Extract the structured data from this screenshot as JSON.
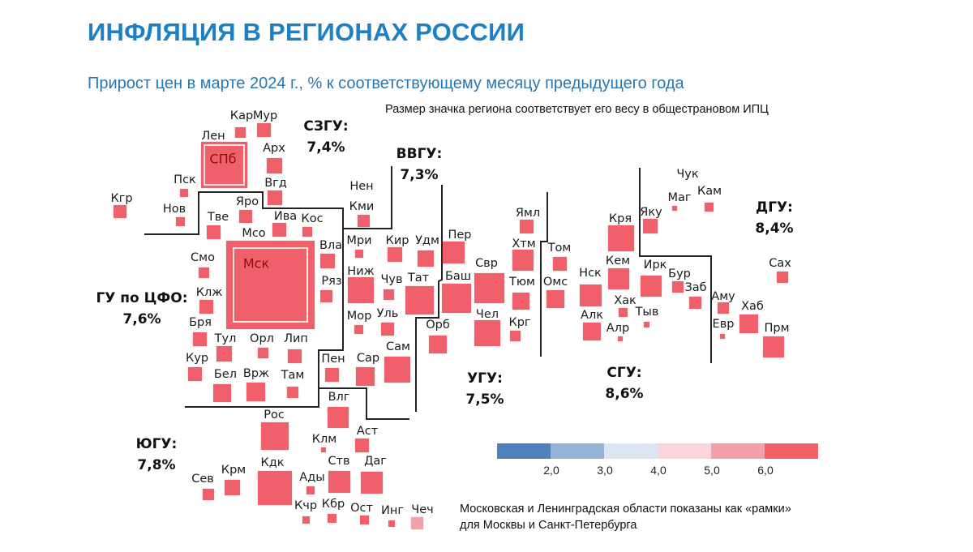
{
  "title": "ИНФЛЯЦИЯ В РЕГИОНАХ РОССИИ",
  "subtitle": "Прирост цен в марте 2024 г., % к соответствующему месяцу предыдущего года",
  "size_note": "Размер значка региона соответствует его весу в общестрановом ИПЦ",
  "frame_note": [
    "Московская и Ленинградская области показаны как «рамки»",
    "для Москвы и Санкт-Петербурга"
  ],
  "districts": [
    {
      "name": "СЗГУ:",
      "value": "7,4%"
    },
    {
      "name": "ВВГУ:",
      "value": "7,3%"
    },
    {
      "name": "ДГУ:",
      "value": "8,4%"
    },
    {
      "name": "ГУ по ЦФО:",
      "value": "7,6%"
    },
    {
      "name": "ЮГУ:",
      "value": "7,8%"
    },
    {
      "name": "УГУ:",
      "value": "7,5%"
    },
    {
      "name": "СГУ:",
      "value": "8,6%"
    }
  ],
  "colors": {
    "above_6": "#f0606a",
    "5_to_6": "#f4a0a8",
    "frame_line": "#fbe3e5",
    "title": "#1e80c4",
    "subtitle": "#2877b2"
  },
  "regions": [
    {
      "label": "Кар",
      "color": "#f0606a"
    },
    {
      "label": "Мур",
      "color": "#f0606a"
    },
    {
      "label": "Лен",
      "color": "#f0606a"
    },
    {
      "label": "Арх",
      "color": "#f0606a"
    },
    {
      "label": "Вгд",
      "color": "#f0606a"
    },
    {
      "label": "Пск",
      "color": "#f0606a"
    },
    {
      "label": "Кгр",
      "color": "#f0606a"
    },
    {
      "label": "Нов",
      "color": "#f0606a"
    },
    {
      "label": "Тве",
      "color": "#f0606a"
    },
    {
      "label": "Яро",
      "color": "#f0606a"
    },
    {
      "label": "Ива",
      "color": "#f0606a"
    },
    {
      "label": "Кос",
      "color": "#f0606a"
    },
    {
      "label": "Мсо",
      "color": "#f0606a"
    },
    {
      "label": "Вла",
      "color": "#f0606a"
    },
    {
      "label": "Смо",
      "color": "#f0606a"
    },
    {
      "label": "Ряз",
      "color": "#f0606a"
    },
    {
      "label": "Клж",
      "color": "#f0606a"
    },
    {
      "label": "Нен",
      "color": "#f0606a"
    },
    {
      "label": "Кми",
      "color": "#f0606a"
    },
    {
      "label": "Мри",
      "color": "#f0606a"
    },
    {
      "label": "Кир",
      "color": "#f0606a"
    },
    {
      "label": "Удм",
      "color": "#f0606a"
    },
    {
      "label": "Ниж",
      "color": "#f0606a"
    },
    {
      "label": "Чув",
      "color": "#f0606a"
    },
    {
      "label": "Тат",
      "color": "#f0606a"
    },
    {
      "label": "Мор",
      "color": "#f0606a"
    },
    {
      "label": "Уль",
      "color": "#f0606a"
    },
    {
      "label": "Бря",
      "color": "#f0606a"
    },
    {
      "label": "Тул",
      "color": "#f0606a"
    },
    {
      "label": "Орл",
      "color": "#f0606a"
    },
    {
      "label": "Лип",
      "color": "#f0606a"
    },
    {
      "label": "Кур",
      "color": "#f0606a"
    },
    {
      "label": "Бел",
      "color": "#f0606a"
    },
    {
      "label": "Врж",
      "color": "#f0606a"
    },
    {
      "label": "Там",
      "color": "#f0606a"
    },
    {
      "label": "Пен",
      "color": "#f0606a"
    },
    {
      "label": "Сар",
      "color": "#f0606a"
    },
    {
      "label": "Сам",
      "color": "#f0606a"
    },
    {
      "label": "Влг",
      "color": "#f0606a"
    },
    {
      "label": "Рос",
      "color": "#f0606a"
    },
    {
      "label": "Клм",
      "color": "#f0606a"
    },
    {
      "label": "Аст",
      "color": "#f0606a"
    },
    {
      "label": "Ств",
      "color": "#f0606a"
    },
    {
      "label": "Даг",
      "color": "#f0606a"
    },
    {
      "label": "Сев",
      "color": "#f0606a"
    },
    {
      "label": "Крм",
      "color": "#f0606a"
    },
    {
      "label": "Кдк",
      "color": "#f0606a"
    },
    {
      "label": "Ады",
      "color": "#f0606a"
    },
    {
      "label": "Кчр",
      "color": "#f0606a"
    },
    {
      "label": "Кбр",
      "color": "#f0606a"
    },
    {
      "label": "Ост",
      "color": "#f0606a"
    },
    {
      "label": "Инг",
      "color": "#f0606a"
    },
    {
      "label": "Чеч",
      "color": "#f4a0a8"
    },
    {
      "label": "Пер",
      "color": "#f0606a"
    },
    {
      "label": "Баш",
      "color": "#f0606a"
    },
    {
      "label": "Свр",
      "color": "#f0606a"
    },
    {
      "label": "Чел",
      "color": "#f0606a"
    },
    {
      "label": "Орб",
      "color": "#f0606a"
    },
    {
      "label": "Ямл",
      "color": "#f0606a"
    },
    {
      "label": "Хтм",
      "color": "#f0606a"
    },
    {
      "label": "Тюм",
      "color": "#f0606a"
    },
    {
      "label": "Крг",
      "color": "#f0606a"
    },
    {
      "label": "Том",
      "color": "#f0606a"
    },
    {
      "label": "Омс",
      "color": "#f0606a"
    },
    {
      "label": "Нск",
      "color": "#f0606a"
    },
    {
      "label": "Алк",
      "color": "#f0606a"
    },
    {
      "label": "Кря",
      "color": "#f0606a"
    },
    {
      "label": "Кем",
      "color": "#f0606a"
    },
    {
      "label": "Хак",
      "color": "#f0606a"
    },
    {
      "label": "Алр",
      "color": "#f0606a"
    },
    {
      "label": "Тыв",
      "color": "#f0606a"
    },
    {
      "label": "Ирк",
      "color": "#f0606a"
    },
    {
      "label": "Бур",
      "color": "#f0606a"
    },
    {
      "label": "Заб",
      "color": "#f0606a"
    },
    {
      "label": "Яку",
      "color": "#f0606a"
    },
    {
      "label": "Маг",
      "color": "#f0606a"
    },
    {
      "label": "Чук",
      "color": "#f0606a"
    },
    {
      "label": "Кам",
      "color": "#f0606a"
    },
    {
      "label": "Аму",
      "color": "#f0606a"
    },
    {
      "label": "Евр",
      "color": "#f0606a"
    },
    {
      "label": "Хаб",
      "color": "#f0606a"
    },
    {
      "label": "Прм",
      "color": "#f0606a"
    },
    {
      "label": "Сах",
      "color": "#f0606a"
    }
  ],
  "inner_regions": [
    {
      "label": "СПб"
    },
    {
      "label": "Мск"
    }
  ],
  "legend": {
    "colors": [
      "#4f81bd",
      "#95b3d7",
      "#dce6f2",
      "#f9d5dc",
      "#f4a0a8",
      "#f06068"
    ],
    "ticks": [
      "2,0",
      "3,0",
      "4,0",
      "5,0",
      "6,0"
    ]
  }
}
